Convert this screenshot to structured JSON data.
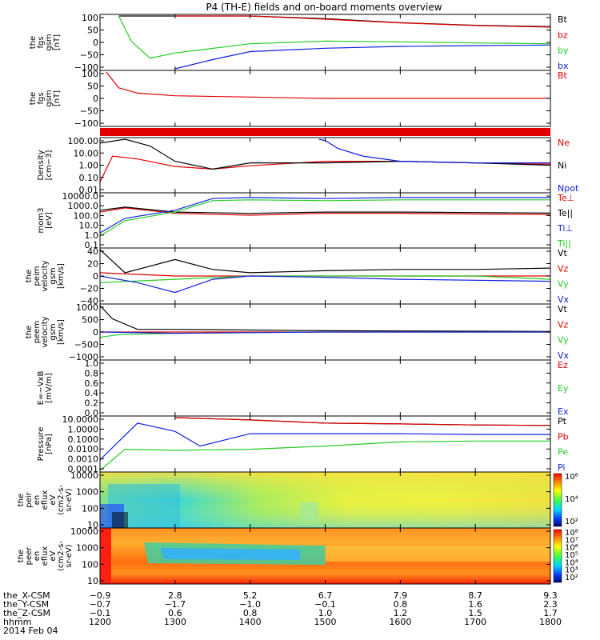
{
  "title": "P4 (TH-E) fields and on-board moments overview",
  "colors": {
    "black": "#000000",
    "red": "#e00000",
    "green": "#22cc22",
    "blue": "#1020e0"
  },
  "panels": [
    {
      "id": "fgs-gsm",
      "ylabel": [
        "the",
        "fgs",
        "gsm",
        "[nT]"
      ],
      "yticks": [
        "100",
        "50",
        "0",
        "−50",
        "−100"
      ],
      "legend": [
        {
          "text": "Bt",
          "color": "#000000"
        },
        {
          "text": "bz",
          "color": "#e00000"
        },
        {
          "text": "by",
          "color": "#22cc22"
        },
        {
          "text": "bx",
          "color": "#1020e0"
        }
      ]
    },
    {
      "id": "fgs-gsm-clipped",
      "ylabel": [
        "the",
        "fgs",
        "gsm",
        "[nT]"
      ],
      "yticks": [
        "100",
        "50",
        "0",
        "−50",
        "−100"
      ],
      "legend": [
        {
          "text": "Bt",
          "color": "#e00000"
        }
      ]
    },
    {
      "id": "density",
      "ylabel": [
        "Density",
        "[cm−3]"
      ],
      "yticks": [
        "100.00",
        "10.00",
        "1.00",
        "0.10",
        "0.01"
      ],
      "legend": [
        {
          "text": "Ne",
          "color": "#e00000"
        },
        {
          "text": "Ni",
          "color": "#000000"
        },
        {
          "text": "Npot",
          "color": "#1020e0"
        }
      ]
    },
    {
      "id": "temperature",
      "ylabel": [
        "mom3",
        "[eV]"
      ],
      "yticks": [
        "10000.0",
        "1000.0",
        "100.0",
        "10.0",
        "1.0",
        "0.1"
      ],
      "legend": [
        {
          "text": "Te⊥",
          "color": "#e00000"
        },
        {
          "text": "Te||",
          "color": "#000000"
        },
        {
          "text": "Ti⊥",
          "color": "#1020e0"
        },
        {
          "text": "Ti||",
          "color": "#22cc22"
        }
      ]
    },
    {
      "id": "ion-velocity",
      "ylabel": [
        "the",
        "peim",
        "velocity",
        "gsm",
        "[km/s]"
      ],
      "yticks": [
        "40",
        "20",
        "0",
        "−20",
        "−40"
      ],
      "legend": [
        {
          "text": "Vt",
          "color": "#000000"
        },
        {
          "text": "Vz",
          "color": "#e00000"
        },
        {
          "text": "Vy",
          "color": "#22cc22"
        },
        {
          "text": "Vx",
          "color": "#1020e0"
        }
      ]
    },
    {
      "id": "electron-velocity",
      "ylabel": [
        "the",
        "peem",
        "velocity",
        "gsm",
        "[km/s]"
      ],
      "yticks": [
        "1000",
        "500",
        "0",
        "−500",
        "−1000"
      ],
      "legend": [
        {
          "text": "Vt",
          "color": "#000000"
        },
        {
          "text": "Vz",
          "color": "#e00000"
        },
        {
          "text": "Vy",
          "color": "#22cc22"
        },
        {
          "text": "Vx",
          "color": "#1020e0"
        }
      ]
    },
    {
      "id": "efield",
      "ylabel": [
        "E=−VxB",
        "[mV/m]"
      ],
      "yticks": [
        "1.0",
        "0.8",
        "0.6",
        "0.4",
        "0.2",
        "0.0"
      ],
      "legend": [
        {
          "text": "Ez",
          "color": "#e00000"
        },
        {
          "text": "Ey",
          "color": "#22cc22"
        },
        {
          "text": "Ex",
          "color": "#1020e0"
        }
      ]
    },
    {
      "id": "pressure",
      "ylabel": [
        "Pressure",
        "[nPa]"
      ],
      "yticks": [
        "10.0000",
        "1.0000",
        "0.1000",
        "0.0100",
        "0.0010",
        "0.0001"
      ],
      "legend": [
        {
          "text": "Pt",
          "color": "#000000"
        },
        {
          "text": "Pb",
          "color": "#e00000"
        },
        {
          "text": "Pe",
          "color": "#22cc22"
        },
        {
          "text": "Pi",
          "color": "#1020e0"
        }
      ]
    },
    {
      "id": "ion-spectrogram",
      "ylabel": [
        "the",
        "peir",
        "en",
        "eflux",
        "eV",
        "(cm2-s-",
        "sr-eV)"
      ],
      "yticks": [
        "10000",
        "1000",
        "100",
        "10"
      ],
      "colorbar": [
        "10⁶",
        "10⁴",
        "10²"
      ]
    },
    {
      "id": "electron-spectrogram",
      "ylabel": [
        "the",
        "peer",
        "en",
        "eflux",
        "eV",
        "(cm2-s-",
        "sr-eV)"
      ],
      "yticks": [
        "10000",
        "1000",
        "100",
        "10"
      ],
      "colorbar": [
        "10⁸",
        "10⁷",
        "10⁶",
        "10⁵",
        "10⁴",
        "10³",
        "10²"
      ]
    }
  ],
  "xaxis": {
    "rows": [
      {
        "label": "the_X-CSM",
        "values": [
          "−0.9",
          "2.8",
          "5.2",
          "6.7",
          "7.9",
          "8.7",
          "9.3"
        ]
      },
      {
        "label": "the_Y-CSM",
        "values": [
          "−0.7",
          "−1.7",
          "−1.0",
          "−0.1",
          "0.8",
          "1.6",
          "2.3"
        ]
      },
      {
        "label": "the_Z-CSM",
        "values": [
          "−0.1",
          "0.6",
          "0.8",
          "1.0",
          "1.2",
          "1.5",
          "1.7"
        ]
      },
      {
        "label": "hhmm",
        "values": [
          "1200",
          "1300",
          "1400",
          "1500",
          "1600",
          "1700",
          "1800"
        ]
      }
    ],
    "date": "2014 Feb 04"
  },
  "chart_data": {
    "type": "line",
    "title": "P4 (TH-E) fields and on-board moments overview",
    "x": [
      "1200",
      "1300",
      "1400",
      "1500",
      "1600",
      "1700",
      "1800"
    ],
    "x_unit": "hhmm",
    "xlim": [
      "1200",
      "1800"
    ],
    "panels": [
      {
        "name": "fgs-gsm",
        "ylim": [
          -100,
          100
        ],
        "series": [
          {
            "name": "Bt",
            "x": [
              "1215",
              "1300",
              "1400",
              "1500",
              "1600",
              "1700",
              "1800"
            ],
            "y": [
              100,
              100,
              100,
              90,
              75,
              65,
              60
            ]
          },
          {
            "name": "bz",
            "x": [
              "1300",
              "1400",
              "1500",
              "1600",
              "1700",
              "1800"
            ],
            "y": [
              100,
              100,
              88,
              74,
              64,
              58
            ]
          },
          {
            "name": "by",
            "x": [
              "1215",
              "1225",
              "1240",
              "1300",
              "1400",
              "1500",
              "1600",
              "1700",
              "1800"
            ],
            "y": [
              100,
              5,
              -60,
              -40,
              -5,
              5,
              2,
              -2,
              -5
            ]
          },
          {
            "name": "bx",
            "x": [
              "1300",
              "1330",
              "1400",
              "1500",
              "1600",
              "1700",
              "1800"
            ],
            "y": [
              -100,
              -65,
              -35,
              -22,
              -15,
              -12,
              -10
            ]
          }
        ]
      },
      {
        "name": "fgs-gsm-clipped",
        "ylim": [
          -100,
          100
        ],
        "series": [
          {
            "name": "Bt",
            "x": [
              "1205",
              "1215",
              "1230",
              "1300",
              "1400",
              "1500",
              "1600",
              "1800"
            ],
            "y": [
              100,
              40,
              20,
              10,
              5,
              0,
              0,
              0
            ]
          }
        ]
      },
      {
        "name": "density",
        "yscale": "log",
        "ylim": [
          0.01,
          100
        ],
        "series": [
          {
            "name": "Ne",
            "x": [
              "1200",
              "1210",
              "1230",
              "1300",
              "1330",
              "1400",
              "1500",
              "1600",
              "1700",
              "1800"
            ],
            "y": [
              0.05,
              5,
              3,
              0.8,
              0.5,
              0.9,
              2,
              2,
              1.5,
              1.2
            ]
          },
          {
            "name": "Ni",
            "x": [
              "1200",
              "1220",
              "1240",
              "1300",
              "1330",
              "1400",
              "1500",
              "1600",
              "1700",
              "1800"
            ],
            "y": [
              50,
              100,
              30,
              2,
              0.5,
              1.5,
              1.5,
              2,
              1.5,
              1
            ]
          },
          {
            "name": "Npot",
            "x": [
              "1455",
              "1500",
              "1510",
              "1530",
              "1600",
              "1700",
              "1800"
            ],
            "y": [
              100,
              80,
              20,
              5,
              2,
              1.5,
              1.5
            ]
          }
        ]
      },
      {
        "name": "temperature",
        "yscale": "log",
        "ylim": [
          0.1,
          10000
        ],
        "series": [
          {
            "name": "Te⊥",
            "x": [
              "1200",
              "1220",
              "1300",
              "1400",
              "1500",
              "1600",
              "1700",
              "1800"
            ],
            "y": [
              200,
              500,
              150,
              100,
              150,
              150,
              130,
              120
            ]
          },
          {
            "name": "Te||",
            "x": [
              "1200",
              "1220",
              "1300",
              "1400",
              "1500",
              "1600",
              "1700",
              "1800"
            ],
            "y": [
              300,
              600,
              200,
              150,
              200,
              200,
              180,
              160
            ]
          },
          {
            "name": "Ti⊥",
            "x": [
              "1200",
              "1220",
              "1300",
              "1330",
              "1400",
              "1500",
              "1600",
              "1700",
              "1800"
            ],
            "y": [
              2,
              50,
              300,
              4000,
              5000,
              4000,
              5000,
              5000,
              5000
            ]
          },
          {
            "name": "Ti||",
            "x": [
              "1200",
              "1220",
              "1300",
              "1330",
              "1400",
              "1500",
              "1600",
              "1700",
              "1800"
            ],
            "y": [
              1,
              30,
              200,
              2500,
              3000,
              2500,
              3000,
              3000,
              3000
            ]
          }
        ]
      },
      {
        "name": "ion-velocity",
        "ylim": [
          -40,
          40
        ],
        "series": [
          {
            "name": "Vt",
            "x": [
              "1200",
              "1220",
              "1300",
              "1330",
              "1400",
              "1500",
              "1600",
              "1700",
              "1800"
            ],
            "y": [
              40,
              5,
              25,
              10,
              5,
              8,
              10,
              10,
              12
            ]
          },
          {
            "name": "Vz",
            "x": [
              "1200",
              "1300",
              "1400",
              "1500",
              "1600",
              "1700",
              "1800"
            ],
            "y": [
              5,
              0,
              0,
              0,
              0,
              0,
              0
            ]
          },
          {
            "name": "Vy",
            "x": [
              "1200",
              "1300",
              "1400",
              "1500",
              "1600",
              "1700",
              "1800"
            ],
            "y": [
              -10,
              -5,
              0,
              0,
              0,
              0,
              -5
            ]
          },
          {
            "name": "Vx",
            "x": [
              "1200",
              "1230",
              "1300",
              "1330",
              "1400",
              "1500",
              "1600",
              "1800"
            ],
            "y": [
              0,
              -10,
              -25,
              -5,
              0,
              -2,
              -5,
              -8
            ]
          }
        ]
      },
      {
        "name": "electron-velocity",
        "ylim": [
          -1000,
          1000
        ],
        "series": [
          {
            "name": "Vt",
            "x": [
              "1200",
              "1210",
              "1230",
              "1300",
              "1500",
              "1800"
            ],
            "y": [
              1000,
              500,
              100,
              100,
              50,
              20
            ]
          },
          {
            "name": "Vz",
            "x": [
              "1200",
              "1300",
              "1500",
              "1800"
            ],
            "y": [
              0,
              0,
              0,
              0
            ]
          },
          {
            "name": "Vy",
            "x": [
              "1200",
              "1215",
              "1300",
              "1500",
              "1800"
            ],
            "y": [
              -200,
              -100,
              -50,
              0,
              0
            ]
          },
          {
            "name": "Vx",
            "x": [
              "1200",
              "1300",
              "1500",
              "1800"
            ],
            "y": [
              0,
              -50,
              0,
              0
            ]
          }
        ]
      },
      {
        "name": "efield",
        "ylim": [
          0,
          1
        ],
        "series": [
          {
            "name": "Ez"
          },
          {
            "name": "Ey"
          },
          {
            "name": "Ex"
          }
        ]
      },
      {
        "name": "pressure",
        "yscale": "log",
        "ylim": [
          0.0001,
          10
        ],
        "series": [
          {
            "name": "Pt",
            "x": [
              "1300",
              "1400",
              "1500",
              "1600",
              "1700",
              "1800"
            ],
            "y": [
              10,
              6,
              3,
              2.5,
              2,
              1.8
            ]
          },
          {
            "name": "Pb",
            "x": [
              "1300",
              "1400",
              "1500",
              "1600",
              "1700",
              "1800"
            ],
            "y": [
              10,
              6,
              3,
              2.5,
              2,
              1.8
            ]
          },
          {
            "name": "Pe",
            "x": [
              "1200",
              "1220",
              "1300",
              "1400",
              "1500",
              "1600",
              "1700",
              "1800"
            ],
            "y": [
              0.0001,
              0.01,
              0.008,
              0.01,
              0.02,
              0.05,
              0.06,
              0.06
            ]
          },
          {
            "name": "Pi",
            "x": [
              "1200",
              "1230",
              "1300",
              "1320",
              "1400",
              "1500",
              "1600",
              "1700",
              "1800"
            ],
            "y": [
              0.001,
              3,
              0.5,
              0.02,
              0.3,
              0.3,
              0.3,
              0.25,
              0.25
            ]
          }
        ]
      },
      {
        "name": "ion-spectrogram",
        "type": "heatmap",
        "yscale": "log",
        "ylim": [
          10,
          10000
        ],
        "zlim": [
          100,
          1000000
        ]
      },
      {
        "name": "electron-spectrogram",
        "type": "heatmap",
        "yscale": "log",
        "ylim": [
          10,
          10000
        ],
        "zlim": [
          100,
          100000000
        ]
      }
    ]
  }
}
